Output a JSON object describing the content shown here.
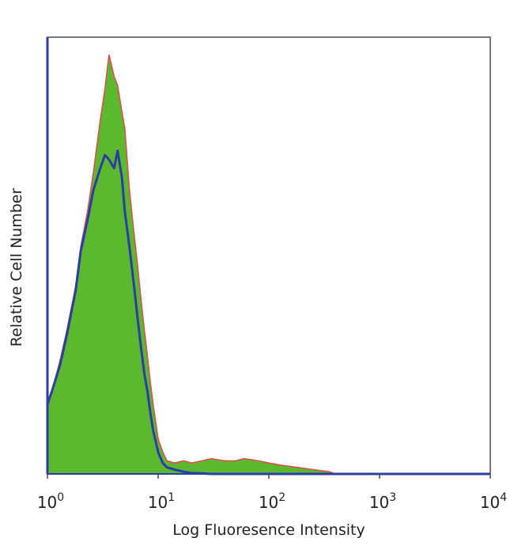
{
  "chart_data": {
    "type": "area",
    "title": "",
    "xlabel": "Log Fluoresence Intensity",
    "ylabel": "Relative Cell Number",
    "xscale": "log",
    "xlim": [
      1,
      10000
    ],
    "ylim": [
      0,
      1
    ],
    "grid": false,
    "legend": "none",
    "x_ticks": [
      {
        "base": "10",
        "exp": "0"
      },
      {
        "base": "10",
        "exp": "1"
      },
      {
        "base": "10",
        "exp": "2"
      },
      {
        "base": "10",
        "exp": "3"
      },
      {
        "base": "10",
        "exp": "4"
      }
    ],
    "series": [
      {
        "style": "filled",
        "color": "#5cb82e",
        "outline": "#d8534c",
        "x": [
          1,
          1.1,
          1.3,
          1.5,
          1.8,
          2.0,
          2.3,
          2.6,
          3.0,
          3.3,
          3.6,
          4.0,
          4.3,
          4.7,
          5.0,
          5.5,
          6.0,
          6.5,
          7.0,
          7.5,
          8.0,
          8.5,
          9.0,
          10,
          11,
          12,
          14,
          17,
          20,
          25,
          30,
          40,
          50,
          60,
          80,
          100,
          130,
          180,
          250,
          350,
          400
        ],
        "y": [
          0.15,
          0.19,
          0.26,
          0.33,
          0.43,
          0.52,
          0.6,
          0.69,
          0.81,
          0.88,
          0.96,
          0.91,
          0.89,
          0.83,
          0.79,
          0.65,
          0.56,
          0.48,
          0.4,
          0.33,
          0.27,
          0.21,
          0.16,
          0.08,
          0.05,
          0.03,
          0.025,
          0.03,
          0.025,
          0.03,
          0.035,
          0.03,
          0.03,
          0.035,
          0.03,
          0.025,
          0.02,
          0.015,
          0.01,
          0.005,
          0
        ]
      },
      {
        "style": "line",
        "color": "#2a3ea6",
        "x": [
          1,
          1.1,
          1.3,
          1.5,
          1.8,
          2.0,
          2.3,
          2.6,
          3.0,
          3.3,
          3.6,
          4.0,
          4.3,
          4.7,
          5.0,
          5.5,
          6.0,
          6.5,
          7.0,
          7.5,
          8.0,
          8.5,
          9.0,
          10,
          11,
          12,
          14,
          17,
          20,
          25,
          30,
          1000,
          10000
        ],
        "y": [
          0.16,
          0.19,
          0.25,
          0.32,
          0.42,
          0.51,
          0.58,
          0.65,
          0.7,
          0.73,
          0.72,
          0.7,
          0.74,
          0.68,
          0.6,
          0.52,
          0.44,
          0.36,
          0.29,
          0.23,
          0.19,
          0.14,
          0.1,
          0.05,
          0.025,
          0.015,
          0.01,
          0.005,
          0.002,
          0.001,
          0,
          0,
          0
        ]
      }
    ]
  }
}
